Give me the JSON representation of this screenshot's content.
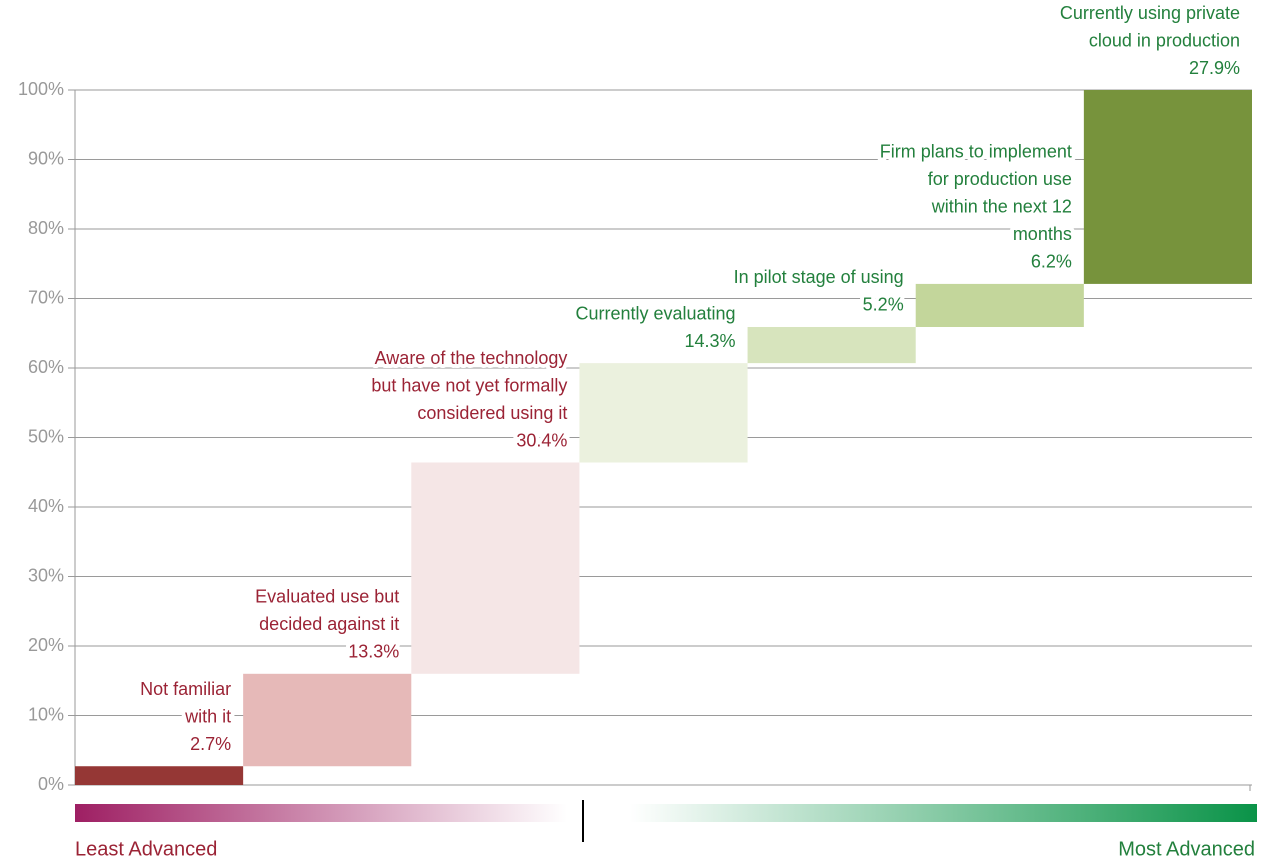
{
  "chart_data": {
    "type": "waterfall",
    "categories": [
      [
        "Not familiar",
        "with it"
      ],
      [
        "Evaluated use but",
        "decided against it"
      ],
      [
        "Aware of the technology",
        "but have not yet formally",
        "considered using it"
      ],
      [
        "Currently evaluating"
      ],
      [
        "In pilot stage of using"
      ],
      [
        "Firm plans to implement",
        "for production use",
        "within the next 12",
        "months"
      ],
      [
        "Currently using private",
        "cloud in production"
      ]
    ],
    "values": [
      2.7,
      13.3,
      30.4,
      14.3,
      5.2,
      6.2,
      27.9
    ],
    "value_labels": [
      "2.7%",
      "13.3%",
      "30.4%",
      "14.3%",
      "5.2%",
      "6.2%",
      "27.9%"
    ],
    "colors": [
      "#953735",
      "#e6b9b8",
      "#f5e6e6",
      "#ebf1de",
      "#d7e4bd",
      "#c3d69b",
      "#77933c"
    ],
    "label_colors": [
      "#9b2335",
      "#9b2335",
      "#9b2335",
      "#23803d",
      "#23803d",
      "#23803d",
      "#23803d"
    ],
    "ylim": [
      0,
      100
    ],
    "yticks": [
      {
        "value": 0,
        "label": "0%"
      },
      {
        "value": 10,
        "label": "10%"
      },
      {
        "value": 20,
        "label": "20%"
      },
      {
        "value": 30,
        "label": "30%"
      },
      {
        "value": 40,
        "label": "40%"
      },
      {
        "value": 50,
        "label": "50%"
      },
      {
        "value": 60,
        "label": "60%"
      },
      {
        "value": 70,
        "label": "70%"
      },
      {
        "value": 80,
        "label": "80%"
      },
      {
        "value": 90,
        "label": "90%"
      },
      {
        "value": 100,
        "label": "100%"
      }
    ],
    "grid": true,
    "scale_labels": [
      "Least Advanced",
      "Most Advanced"
    ]
  }
}
